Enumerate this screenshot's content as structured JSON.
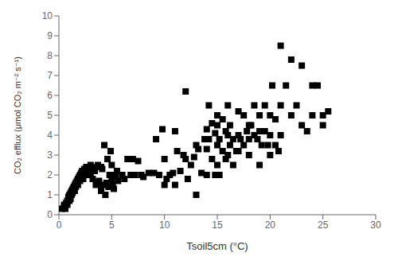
{
  "chart_data": {
    "type": "scatter",
    "x": [
      0.3,
      0.5,
      0.5,
      0.6,
      0.7,
      0.8,
      0.8,
      0.9,
      0.9,
      1.0,
      1.0,
      1.0,
      1.1,
      1.1,
      1.2,
      1.2,
      1.3,
      1.3,
      1.4,
      1.5,
      1.5,
      1.6,
      1.6,
      1.7,
      1.8,
      1.8,
      1.9,
      2.0,
      2.0,
      2.1,
      2.2,
      2.2,
      2.3,
      2.3,
      2.4,
      2.5,
      2.5,
      2.6,
      2.7,
      2.8,
      2.9,
      3.0,
      3.0,
      3.1,
      3.2,
      3.3,
      3.4,
      3.5,
      3.6,
      3.7,
      3.8,
      4.0,
      4.0,
      4.0,
      4.1,
      4.2,
      4.3,
      4.4,
      4.5,
      4.6,
      4.7,
      4.8,
      4.9,
      5.0,
      5.0,
      5.1,
      5.2,
      5.3,
      5.4,
      5.5,
      5.6,
      6.0,
      6.2,
      6.5,
      6.8,
      7.0,
      7.2,
      7.5,
      7.8,
      8.0,
      8.5,
      9.0,
      9.2,
      9.5,
      9.8,
      10.0,
      10.0,
      10.2,
      10.5,
      10.8,
      11.0,
      11.0,
      11.2,
      11.5,
      11.8,
      12.0,
      12.0,
      12.2,
      12.5,
      12.8,
      13.0,
      13.0,
      13.2,
      13.5,
      13.8,
      14.0,
      14.0,
      14.0,
      14.2,
      14.2,
      14.5,
      14.5,
      14.8,
      14.8,
      15.0,
      15.0,
      15.0,
      15.0,
      15.2,
      15.2,
      15.5,
      15.5,
      15.8,
      15.8,
      16.0,
      16.0,
      16.0,
      16.2,
      16.2,
      16.5,
      16.5,
      16.8,
      17.0,
      17.0,
      17.0,
      17.2,
      17.5,
      17.5,
      17.8,
      18.0,
      18.0,
      18.0,
      18.2,
      18.5,
      18.5,
      18.8,
      19.0,
      19.0,
      19.0,
      19.2,
      19.5,
      19.5,
      19.8,
      20.0,
      20.0,
      20.0,
      20.2,
      20.5,
      20.5,
      20.8,
      21.0,
      21.0,
      21.0,
      21.5,
      22.0,
      22.0,
      22.5,
      23.0,
      23.0,
      23.5,
      24.0,
      24.0,
      24.5,
      25.0,
      25.0,
      25.5
    ],
    "values": [
      0.3,
      0.4,
      0.5,
      0.3,
      0.6,
      0.7,
      0.5,
      0.8,
      0.9,
      1.0,
      0.7,
      0.9,
      1.1,
      0.8,
      1.2,
      1.0,
      1.3,
      1.1,
      1.4,
      1.5,
      1.2,
      1.6,
      1.4,
      1.7,
      1.8,
      1.5,
      1.9,
      2.0,
      1.7,
      2.1,
      1.9,
      2.2,
      2.0,
      1.8,
      2.3,
      2.2,
      2.0,
      2.4,
      2.1,
      2.3,
      2.2,
      2.5,
      2.0,
      2.3,
      1.8,
      2.4,
      2.2,
      1.5,
      1.6,
      2.5,
      1.7,
      1.4,
      2.4,
      1.2,
      2.3,
      1.5,
      3.5,
      1.0,
      1.6,
      2.8,
      1.4,
      2.0,
      3.2,
      1.8,
      2.5,
      1.5,
      1.3,
      2.0,
      1.9,
      2.2,
      1.7,
      2.0,
      1.8,
      2.8,
      2.0,
      2.8,
      2.0,
      2.7,
      2.0,
      1.9,
      2.1,
      2.1,
      3.8,
      2.0,
      4.3,
      2.8,
      1.5,
      1.8,
      2.0,
      2.1,
      1.5,
      4.2,
      3.2,
      2.2,
      3.0,
      6.2,
      2.8,
      1.8,
      2.5,
      2.9,
      3.5,
      1.0,
      3.3,
      2.1,
      3.8,
      3.3,
      4.3,
      2.0,
      5.5,
      3.8,
      4.6,
      2.8,
      4.1,
      2.0,
      5.0,
      4.5,
      3.5,
      2.5,
      3.8,
      2.0,
      4.8,
      3.2,
      4.2,
      2.8,
      5.5,
      4.0,
      3.0,
      4.5,
      3.5,
      3.8,
      2.5,
      3.2,
      5.2,
      4.0,
      3.2,
      3.8,
      5.0,
      3.5,
      4.2,
      4.5,
      3.8,
      3.0,
      4.5,
      5.5,
      4.0,
      3.8,
      2.5,
      5.0,
      4.2,
      3.5,
      5.5,
      4.2,
      3.5,
      3.0,
      5.0,
      4.0,
      6.5,
      4.8,
      3.5,
      3.2,
      8.5,
      5.5,
      4.0,
      6.5,
      7.8,
      5.0,
      5.5,
      7.5,
      4.5,
      4.2,
      5.0,
      6.5,
      6.5,
      5.0,
      4.5,
      5.2
    ],
    "xlim": [
      0,
      30
    ],
    "ylim": [
      0,
      10
    ],
    "xticks": [
      0,
      5,
      10,
      15,
      20,
      25,
      30
    ],
    "yticks": [
      0,
      1,
      2,
      3,
      4,
      5,
      6,
      7,
      8,
      9,
      10
    ],
    "xlabel": "Tsoil5cm (°C)",
    "ylabel": "CO₂ efflux (μmol CO₂ m⁻² s⁻¹)",
    "marker": "square",
    "color": "black",
    "grid": false
  }
}
